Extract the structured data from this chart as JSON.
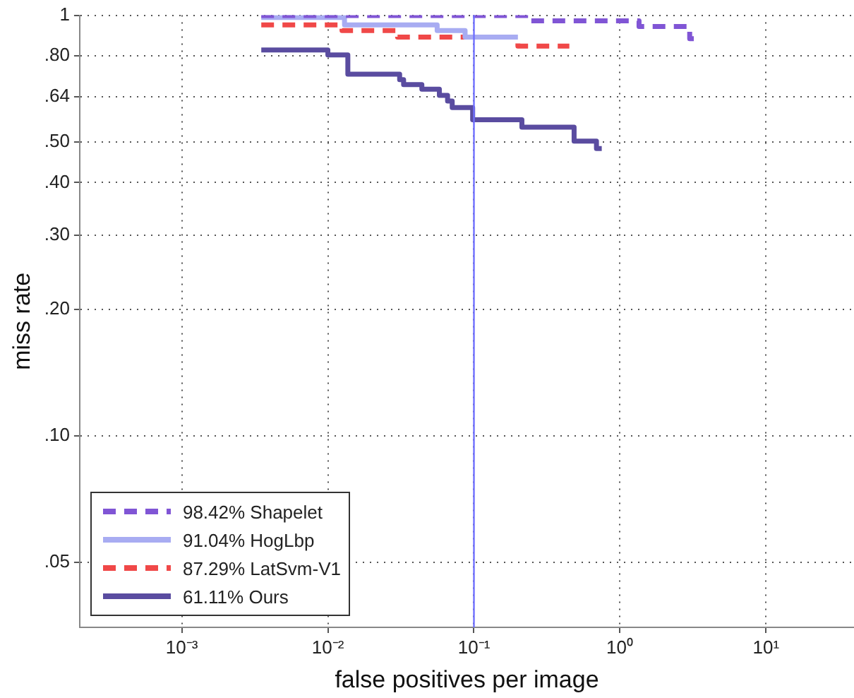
{
  "chart_data": {
    "type": "step",
    "xlabel": "false positives per image",
    "ylabel": "miss rate",
    "log": "xy",
    "grid": true,
    "legend": "bottom left",
    "xlim": [
      0.0002,
      40
    ],
    "xticks": [
      {
        "value": 0.001,
        "label": "10⁻³"
      },
      {
        "value": 0.01,
        "label": "10⁻²"
      },
      {
        "value": 0.1,
        "label": "10⁻¹"
      },
      {
        "value": 1,
        "label": "10⁰"
      },
      {
        "value": 10,
        "label": "10¹"
      }
    ],
    "ylim": [
      0.035,
      1
    ],
    "yticks": [
      {
        "value": 0.05,
        "label": ".05"
      },
      {
        "value": 0.1,
        "label": ".10"
      },
      {
        "value": 0.2,
        "label": ".20"
      },
      {
        "value": 0.3,
        "label": ".30"
      },
      {
        "value": 0.4,
        "label": ".40"
      },
      {
        "value": 0.5,
        "label": ".50"
      },
      {
        "value": 0.64,
        "label": ".64"
      },
      {
        "value": 0.8,
        "label": ".80"
      },
      1
    ],
    "ref_lines": [
      {
        "axis": "x",
        "value": 0.1,
        "color": "#7070ff",
        "line_style": "solid"
      }
    ],
    "series": [
      {
        "name": "98.42% Shapelet",
        "color": "#8055d5",
        "line_style": "dashed",
        "x": [
          0.0035,
          0.24,
          1.35,
          3.0,
          3.2
        ],
        "values": [
          0.998,
          0.97,
          0.94,
          0.88,
          0.88
        ]
      },
      {
        "name": "91.04% HogLbp",
        "color": "#a8acf2",
        "line_style": "solid",
        "x": [
          0.0035,
          0.013,
          0.056,
          0.087,
          0.2
        ],
        "values": [
          0.988,
          0.949,
          0.92,
          0.887,
          0.887
        ]
      },
      {
        "name": "87.29% LatSvm-V1",
        "color": "#f04848",
        "line_style": "dashed",
        "x": [
          0.0035,
          0.0125,
          0.03,
          0.2,
          0.45
        ],
        "values": [
          0.949,
          0.92,
          0.887,
          0.845,
          0.845
        ]
      },
      {
        "name": "61.11% Ours",
        "color": "#5a4ca0",
        "line_style": "solid",
        "x": [
          0.0035,
          0.01,
          0.0137,
          0.031,
          0.033,
          0.044,
          0.058,
          0.066,
          0.071,
          0.098,
          0.213,
          0.485,
          0.69,
          0.75
        ],
        "values": [
          0.827,
          0.805,
          0.724,
          0.703,
          0.684,
          0.667,
          0.645,
          0.625,
          0.603,
          0.564,
          0.542,
          0.502,
          0.482,
          0.482
        ]
      }
    ]
  }
}
